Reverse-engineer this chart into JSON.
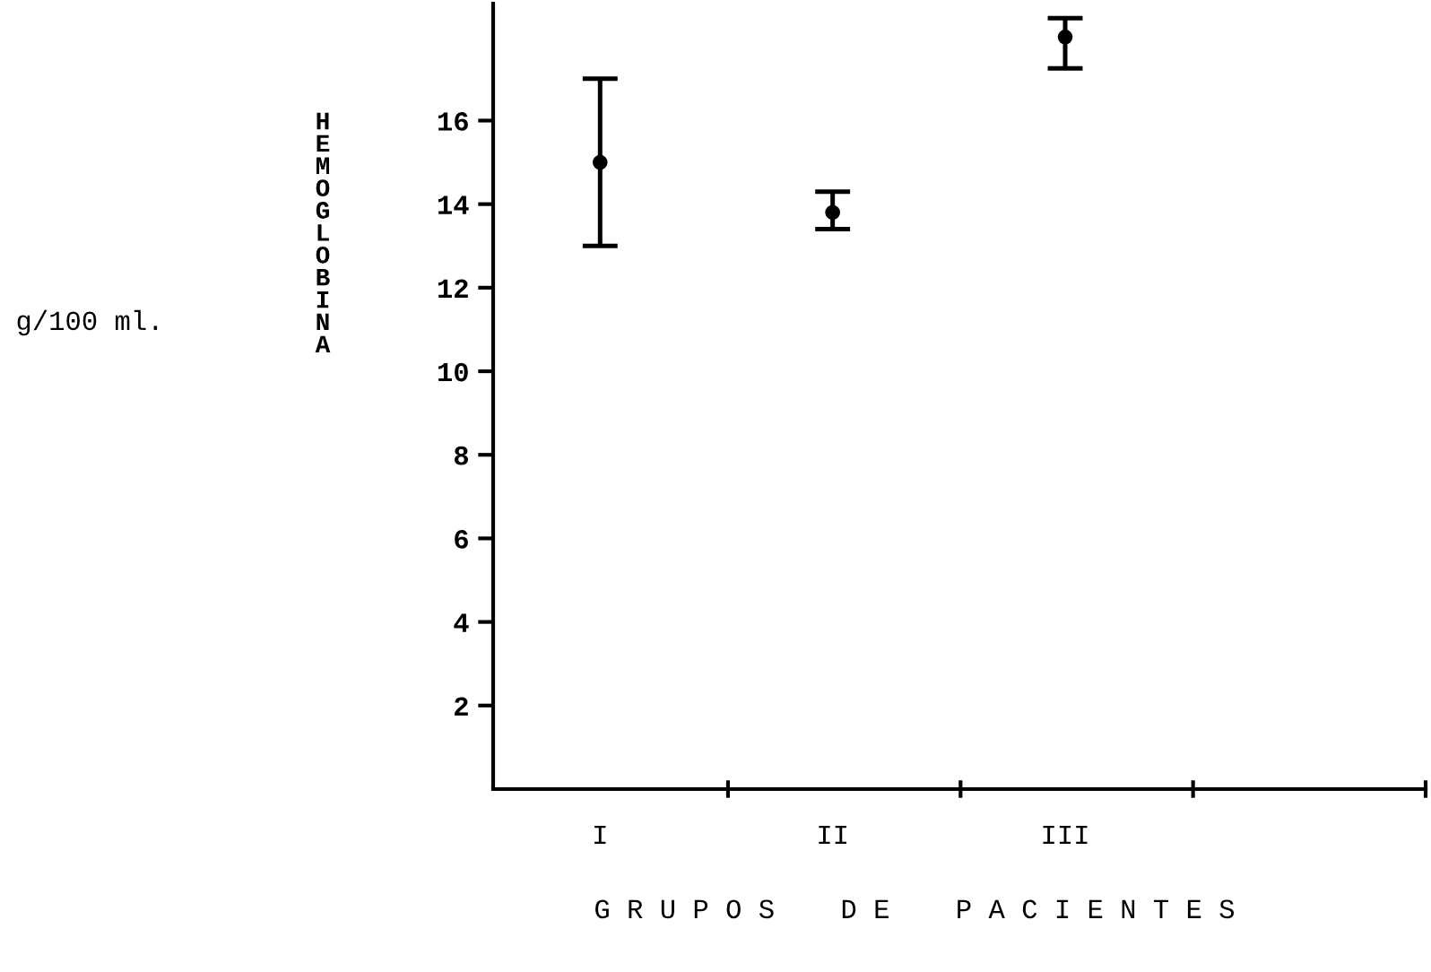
{
  "chart_data": {
    "type": "scatter",
    "xlabel": "G R U P O S    D E    P A C I E N T E S",
    "ylabel": "HEMOGLOBINA",
    "annotations": [
      "g/100 ml."
    ],
    "categories": [
      "I",
      "II",
      "III"
    ],
    "values": [
      15.0,
      13.8,
      18.0
    ],
    "errors": [
      [
        13.0,
        17.0
      ],
      [
        13.4,
        14.3
      ],
      [
        17.25,
        18.45
      ]
    ],
    "color": "#000000",
    "marker": "circle",
    "ylim": [
      0,
      18.8
    ],
    "yticks": [
      2,
      4,
      6,
      8,
      10,
      12,
      14,
      16
    ],
    "grid": false
  }
}
